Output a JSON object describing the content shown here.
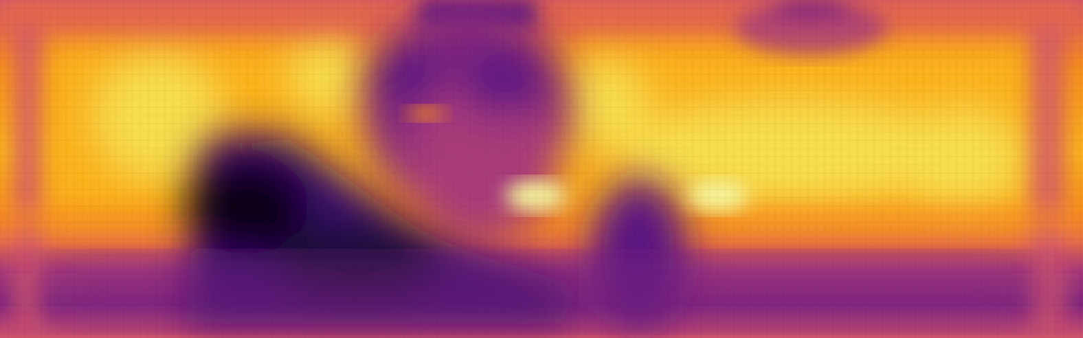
{
  "image": {
    "colormap": "inferno",
    "palette": {
      "darkest": "#0b0518",
      "deep_purple": "#3b0f70",
      "purple": "#5c1782",
      "violet": "#82267f",
      "magenta": "#a83b7a",
      "rose": "#d2556d",
      "coral": "#e4694a",
      "orange": "#f7901b",
      "amber": "#fbb31d",
      "yellow": "#f7de4e",
      "pale_yellow": "#f4f59f"
    }
  }
}
